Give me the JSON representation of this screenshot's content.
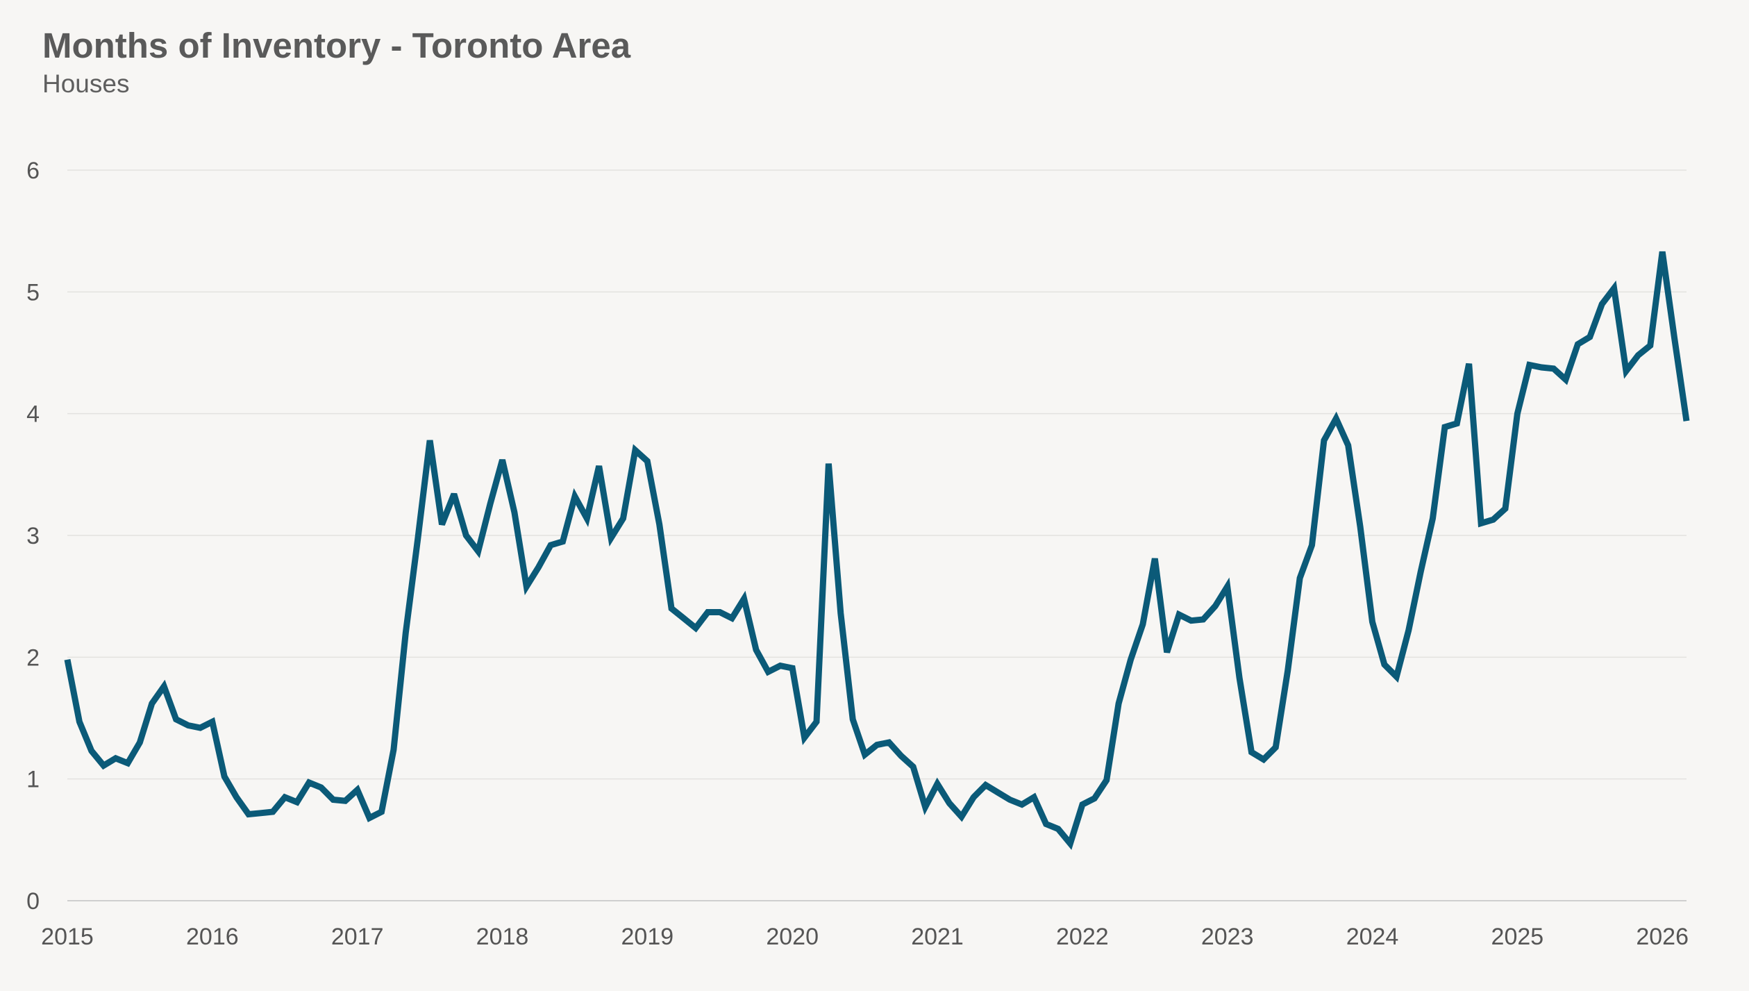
{
  "chart_data": {
    "type": "line",
    "title": "Months of Inventory - Toronto Area",
    "subtitle": "Houses",
    "xlabel": "",
    "ylabel": "",
    "ylim": [
      0,
      6
    ],
    "yticks": [
      0,
      1,
      2,
      3,
      4,
      5,
      6
    ],
    "xticks": [
      "2015",
      "2016",
      "2017",
      "2018",
      "2019",
      "2020",
      "2021",
      "2022",
      "2023",
      "2024",
      "2025",
      "2026"
    ],
    "x_range": [
      "2015-01",
      "2026-03"
    ],
    "grid": true,
    "legend": "none",
    "series": [
      {
        "color": "#0b5a78",
        "x": [
          "2015-01",
          "2015-02",
          "2015-03",
          "2015-04",
          "2015-05",
          "2015-06",
          "2015-07",
          "2015-08",
          "2015-09",
          "2015-10",
          "2015-11",
          "2015-12",
          "2016-01",
          "2016-02",
          "2016-03",
          "2016-04",
          "2016-05",
          "2016-06",
          "2016-07",
          "2016-08",
          "2016-09",
          "2016-10",
          "2016-11",
          "2016-12",
          "2017-01",
          "2017-02",
          "2017-03",
          "2017-04",
          "2017-05",
          "2017-06",
          "2017-07",
          "2017-08",
          "2017-09",
          "2017-10",
          "2017-11",
          "2017-12",
          "2018-01",
          "2018-02",
          "2018-03",
          "2018-04",
          "2018-05",
          "2018-06",
          "2018-07",
          "2018-08",
          "2018-09",
          "2018-10",
          "2018-11",
          "2018-12",
          "2019-01",
          "2019-02",
          "2019-03",
          "2019-04",
          "2019-05",
          "2019-06",
          "2019-07",
          "2019-08",
          "2019-09",
          "2019-10",
          "2019-11",
          "2019-12",
          "2020-01",
          "2020-02",
          "2020-03",
          "2020-04",
          "2020-05",
          "2020-06",
          "2020-07",
          "2020-08",
          "2020-09",
          "2020-10",
          "2020-11",
          "2020-12",
          "2021-01",
          "2021-02",
          "2021-03",
          "2021-04",
          "2021-05",
          "2021-06",
          "2021-07",
          "2021-08",
          "2021-09",
          "2021-10",
          "2021-11",
          "2021-12",
          "2022-01",
          "2022-02",
          "2022-03",
          "2022-04",
          "2022-05",
          "2022-06",
          "2022-07",
          "2022-08",
          "2022-09",
          "2022-10",
          "2022-11",
          "2022-12",
          "2023-01",
          "2023-02",
          "2023-03",
          "2023-04",
          "2023-05",
          "2023-06",
          "2023-07",
          "2023-08",
          "2023-09",
          "2023-10",
          "2023-11",
          "2023-12",
          "2024-01",
          "2024-02",
          "2024-03",
          "2024-04",
          "2024-05",
          "2024-06",
          "2024-07",
          "2024-08",
          "2024-09",
          "2024-10",
          "2024-11",
          "2024-12",
          "2025-01",
          "2025-02",
          "2025-03",
          "2025-04",
          "2025-05",
          "2025-06",
          "2025-07",
          "2025-08",
          "2025-09",
          "2025-10",
          "2025-11",
          "2025-12",
          "2026-01",
          "2026-02",
          "2026-03"
        ],
        "values": [
          1.98,
          1.47,
          1.23,
          1.11,
          1.17,
          1.13,
          1.3,
          1.62,
          1.76,
          1.49,
          1.44,
          1.42,
          1.47,
          1.02,
          0.85,
          0.71,
          0.72,
          0.73,
          0.85,
          0.81,
          0.97,
          0.93,
          0.83,
          0.82,
          0.91,
          0.68,
          0.73,
          1.24,
          2.2,
          2.97,
          3.78,
          3.09,
          3.34,
          3.0,
          2.87,
          3.26,
          3.62,
          3.19,
          2.58,
          2.74,
          2.92,
          2.95,
          3.32,
          3.14,
          3.57,
          2.98,
          3.14,
          3.7,
          3.61,
          3.09,
          2.4,
          2.32,
          2.24,
          2.37,
          2.37,
          2.32,
          2.48,
          2.06,
          1.88,
          1.93,
          1.91,
          1.34,
          1.47,
          3.59,
          2.36,
          1.49,
          1.2,
          1.28,
          1.3,
          1.19,
          1.1,
          0.77,
          0.96,
          0.8,
          0.69,
          0.85,
          0.95,
          0.89,
          0.83,
          0.79,
          0.85,
          0.63,
          0.59,
          0.47,
          0.79,
          0.84,
          0.99,
          1.62,
          1.98,
          2.27,
          2.81,
          2.04,
          2.35,
          2.3,
          2.31,
          2.42,
          2.58,
          1.83,
          1.22,
          1.16,
          1.26,
          1.89,
          2.65,
          2.92,
          3.78,
          3.96,
          3.74,
          3.07,
          2.29,
          1.94,
          1.84,
          2.22,
          2.7,
          3.14,
          3.89,
          3.92,
          4.41,
          3.1,
          3.13,
          3.22,
          4.0,
          4.4,
          4.38,
          4.37,
          4.28,
          4.57,
          4.63,
          4.9,
          5.03,
          4.35,
          4.48,
          4.56,
          5.33,
          4.62,
          3.94
        ]
      }
    ]
  }
}
